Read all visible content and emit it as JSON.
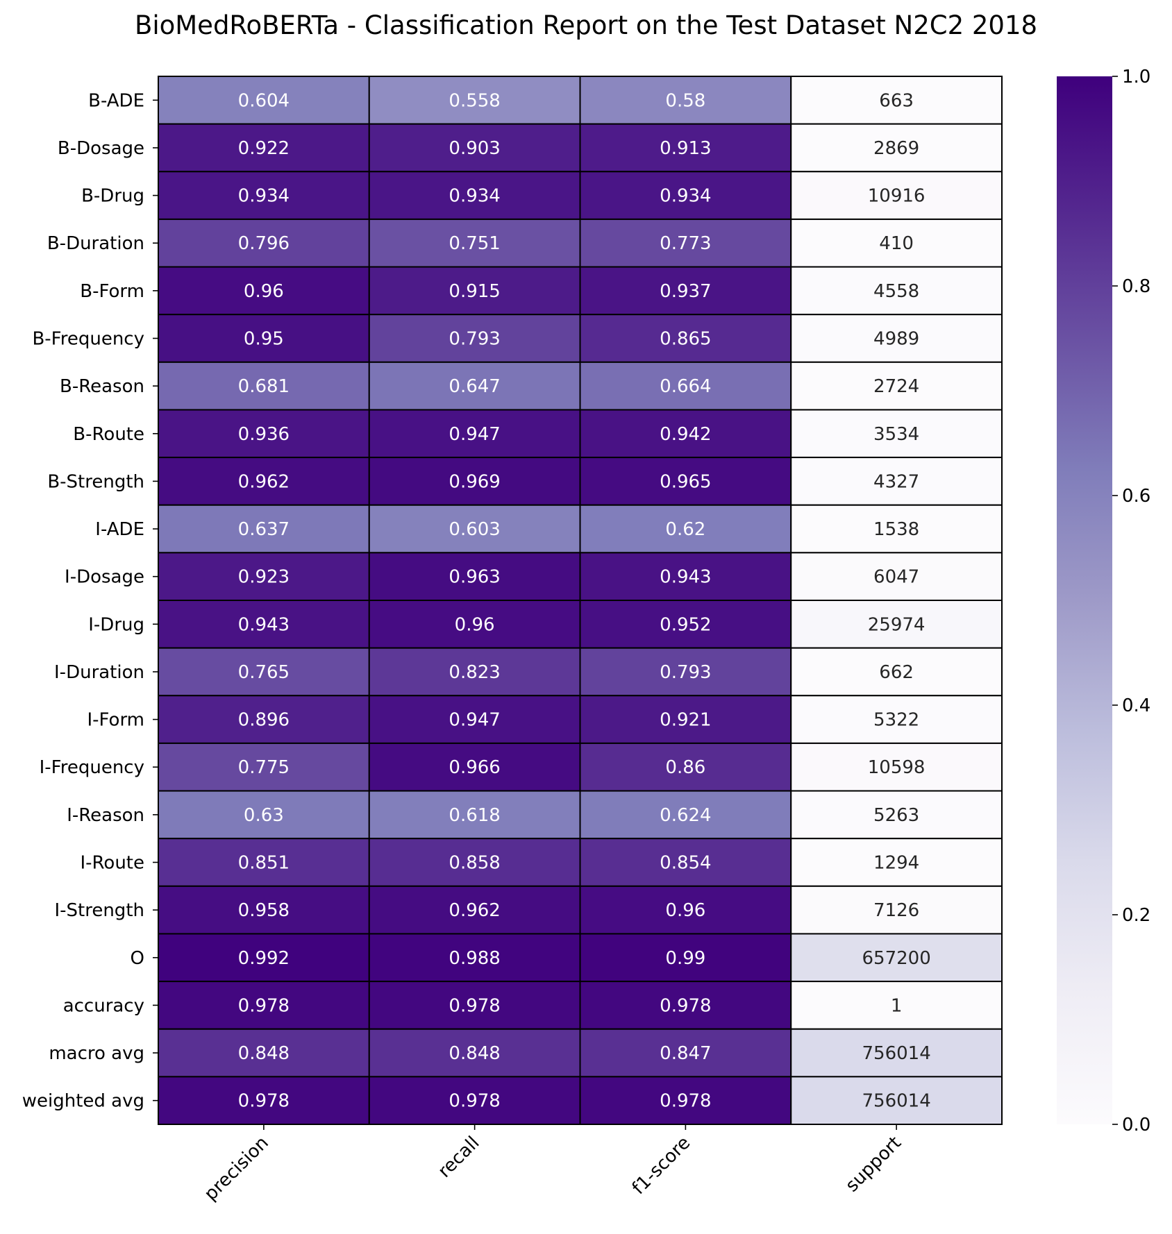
{
  "chart_data": {
    "type": "heatmap",
    "title": "BioMedRoBERTa - Classification Report on the Test Dataset N2C2 2018",
    "colormap": "Purples",
    "colormap_stops": [
      "#fcfbfd",
      "#efedf5",
      "#dadaeb",
      "#bcbddc",
      "#9e9ac8",
      "#807dba",
      "#6a51a3",
      "#54278f",
      "#3f007d"
    ],
    "columns": [
      "precision",
      "recall",
      "f1-score",
      "support"
    ],
    "rows": [
      "B-ADE",
      "B-Dosage",
      "B-Drug",
      "B-Duration",
      "B-Form",
      "B-Frequency",
      "B-Reason",
      "B-Route",
      "B-Strength",
      "I-ADE",
      "I-Dosage",
      "I-Drug",
      "I-Duration",
      "I-Form",
      "I-Frequency",
      "I-Reason",
      "I-Route",
      "I-Strength",
      "O",
      "accuracy",
      "macro avg",
      "weighted avg"
    ],
    "values": [
      [
        0.604,
        0.558,
        0.58,
        663
      ],
      [
        0.922,
        0.903,
        0.913,
        2869
      ],
      [
        0.934,
        0.934,
        0.934,
        10916
      ],
      [
        0.796,
        0.751,
        0.773,
        410
      ],
      [
        0.96,
        0.915,
        0.937,
        4558
      ],
      [
        0.95,
        0.793,
        0.865,
        4989
      ],
      [
        0.681,
        0.647,
        0.664,
        2724
      ],
      [
        0.936,
        0.947,
        0.942,
        3534
      ],
      [
        0.962,
        0.969,
        0.965,
        4327
      ],
      [
        0.637,
        0.603,
        0.62,
        1538
      ],
      [
        0.923,
        0.963,
        0.943,
        6047
      ],
      [
        0.943,
        0.96,
        0.952,
        25974
      ],
      [
        0.765,
        0.823,
        0.793,
        662
      ],
      [
        0.896,
        0.947,
        0.921,
        5322
      ],
      [
        0.775,
        0.966,
        0.86,
        10598
      ],
      [
        0.63,
        0.618,
        0.624,
        5263
      ],
      [
        0.851,
        0.858,
        0.854,
        1294
      ],
      [
        0.958,
        0.962,
        0.96,
        7126
      ],
      [
        0.992,
        0.988,
        0.99,
        657200
      ],
      [
        0.978,
        0.978,
        0.978,
        1
      ],
      [
        0.848,
        0.848,
        0.847,
        756014
      ],
      [
        0.978,
        0.978,
        0.978,
        756014
      ]
    ],
    "labels": [
      [
        "0.604",
        "0.558",
        "0.58",
        "663"
      ],
      [
        "0.922",
        "0.903",
        "0.913",
        "2869"
      ],
      [
        "0.934",
        "0.934",
        "0.934",
        "10916"
      ],
      [
        "0.796",
        "0.751",
        "0.773",
        "410"
      ],
      [
        "0.96",
        "0.915",
        "0.937",
        "4558"
      ],
      [
        "0.95",
        "0.793",
        "0.865",
        "4989"
      ],
      [
        "0.681",
        "0.647",
        "0.664",
        "2724"
      ],
      [
        "0.936",
        "0.947",
        "0.942",
        "3534"
      ],
      [
        "0.962",
        "0.969",
        "0.965",
        "4327"
      ],
      [
        "0.637",
        "0.603",
        "0.62",
        "1538"
      ],
      [
        "0.923",
        "0.963",
        "0.943",
        "6047"
      ],
      [
        "0.943",
        "0.96",
        "0.952",
        "25974"
      ],
      [
        "0.765",
        "0.823",
        "0.793",
        "662"
      ],
      [
        "0.896",
        "0.947",
        "0.921",
        "5322"
      ],
      [
        "0.775",
        "0.966",
        "0.86",
        "10598"
      ],
      [
        "0.63",
        "0.618",
        "0.624",
        "5263"
      ],
      [
        "0.851",
        "0.858",
        "0.854",
        "1294"
      ],
      [
        "0.958",
        "0.962",
        "0.96",
        "7126"
      ],
      [
        "0.992",
        "0.988",
        "0.99",
        "657200"
      ],
      [
        "0.978",
        "0.978",
        "0.978",
        "1"
      ],
      [
        "0.848",
        "0.848",
        "0.847",
        "756014"
      ],
      [
        "0.978",
        "0.978",
        "0.978",
        "756014"
      ]
    ],
    "support_color_fraction": [
      0.001,
      0.004,
      0.014,
      0.001,
      0.006,
      0.007,
      0.004,
      0.005,
      0.006,
      0.002,
      0.008,
      0.034,
      0.001,
      0.007,
      0.014,
      0.007,
      0.002,
      0.009,
      0.219,
      0.0,
      0.252,
      0.252
    ],
    "colorbar": {
      "range": [
        0.0,
        1.0
      ],
      "ticks": [
        0.0,
        0.2,
        0.4,
        0.6,
        0.8,
        1.0
      ],
      "tick_labels": [
        "0.0",
        "0.2",
        "0.4",
        "0.6",
        "0.8",
        "1.0"
      ]
    },
    "xlabel": "",
    "ylabel": "",
    "cell_border_color": "#000000"
  }
}
